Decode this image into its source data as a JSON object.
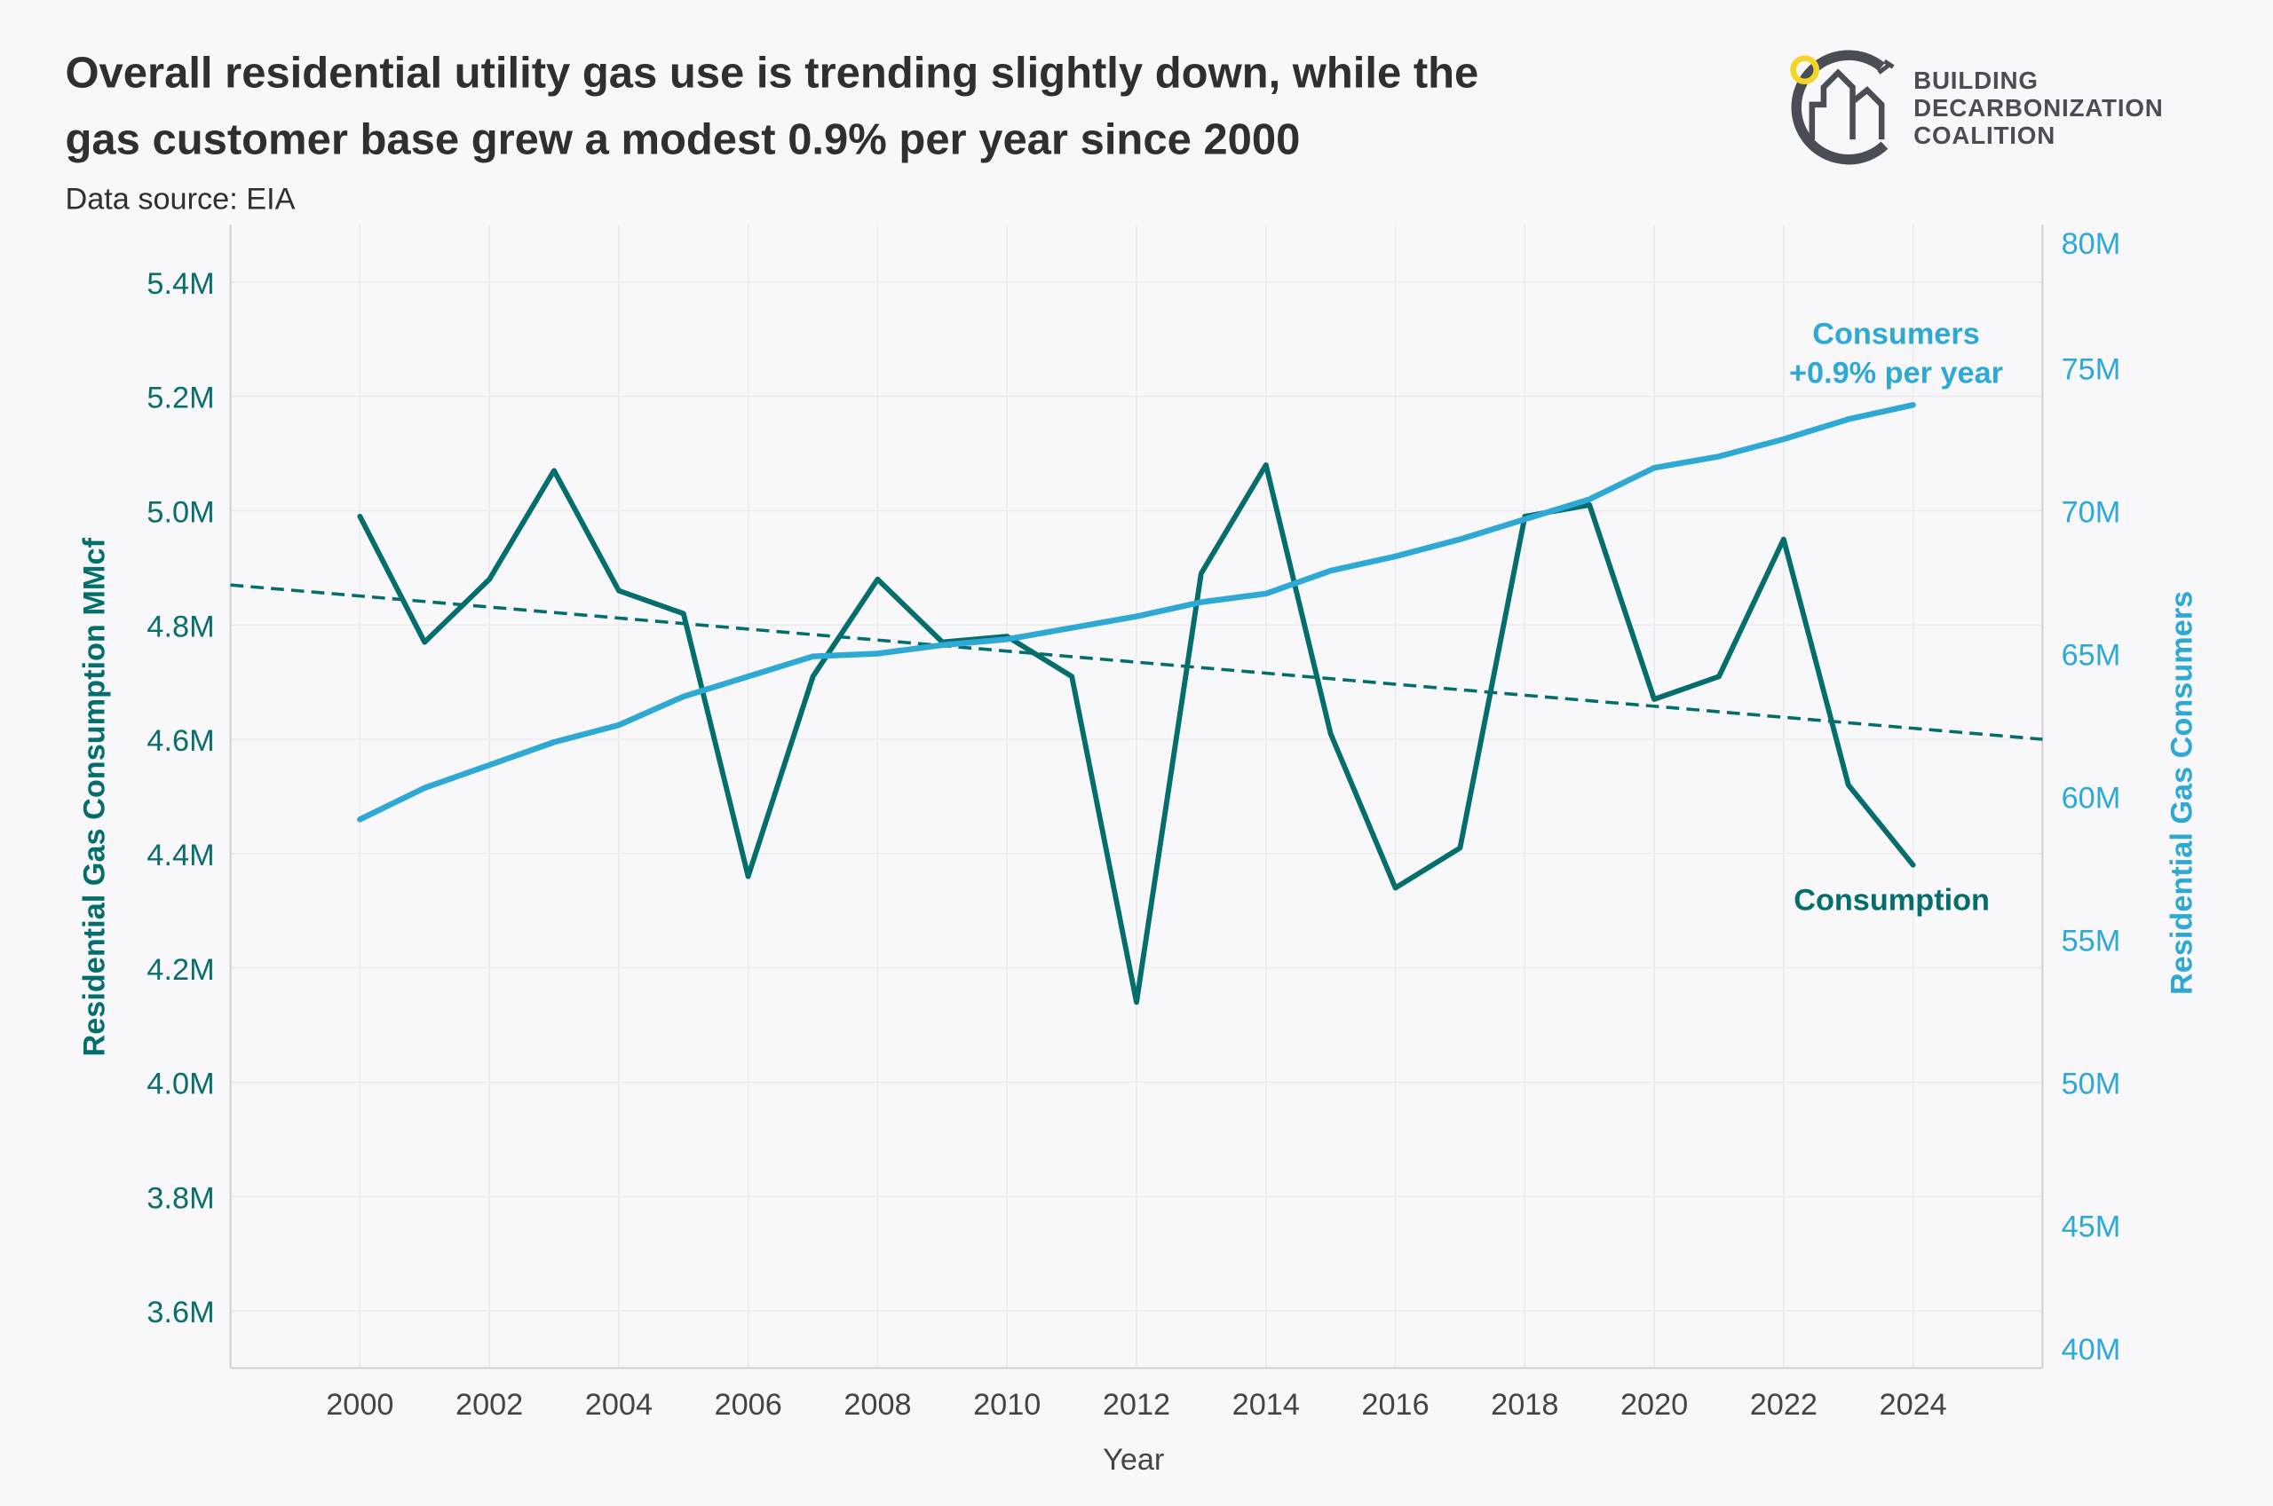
{
  "title_lines": [
    "Overall residential utility gas use is trending slightly down, while the",
    "gas customer base grew a modest 0.9% per year since 2000"
  ],
  "subtitle": "Data source: EIA",
  "logo": {
    "lines": [
      "BUILDING",
      "DECARBONIZATION",
      "COALITION"
    ]
  },
  "colors": {
    "consumption": "#036e6c",
    "consumers": "#2ea9d6",
    "background": "#f8f8fa",
    "logo_accent": "#f5d428"
  },
  "chart_data": {
    "type": "line",
    "title": "Overall residential utility gas use is trending slightly down, while the gas customer base grew a modest 0.9% per year since 2000",
    "xlabel": "Year",
    "ylabel": "Residential Gas Consumption MMcf",
    "y2label": "Residential Gas Consumers",
    "xlim": [
      1998,
      2026
    ],
    "ylim": [
      3.5,
      5.5
    ],
    "y2lim": [
      40,
      80
    ],
    "grid": true,
    "x_ticks": [
      "2000",
      "2002",
      "2004",
      "2006",
      "2008",
      "2010",
      "2012",
      "2014",
      "2016",
      "2018",
      "2020",
      "2022",
      "2024"
    ],
    "y_ticks": [
      "3.6M",
      "3.8M",
      "4.0M",
      "4.2M",
      "4.4M",
      "4.6M",
      "4.8M",
      "5.0M",
      "5.2M",
      "5.4M"
    ],
    "y2_ticks": [
      "40M",
      "45M",
      "50M",
      "55M",
      "60M",
      "65M",
      "70M",
      "75M",
      "80M"
    ],
    "x": [
      2000,
      2001,
      2002,
      2003,
      2004,
      2005,
      2006,
      2007,
      2008,
      2009,
      2010,
      2011,
      2012,
      2013,
      2014,
      2015,
      2016,
      2017,
      2018,
      2019,
      2020,
      2021,
      2022,
      2023,
      2024
    ],
    "series": [
      {
        "name": "Consumption",
        "axis": "left",
        "unit": "million MMcf",
        "values": [
          4.99,
          4.77,
          4.88,
          5.07,
          4.86,
          4.82,
          4.36,
          4.71,
          4.88,
          4.77,
          4.78,
          4.71,
          4.14,
          4.89,
          5.08,
          4.61,
          4.34,
          4.41,
          4.99,
          5.01,
          4.67,
          4.71,
          4.95,
          4.52,
          4.38
        ]
      },
      {
        "name": "Consumers",
        "axis": "right",
        "unit": "million",
        "values": [
          59.2,
          60.3,
          61.1,
          61.9,
          62.5,
          63.5,
          64.2,
          64.9,
          65.0,
          65.3,
          65.5,
          65.9,
          66.3,
          66.8,
          67.1,
          67.9,
          68.4,
          69.0,
          69.7,
          70.4,
          71.5,
          71.9,
          72.5,
          73.2,
          73.7
        ]
      }
    ],
    "trendline": {
      "series": "Consumption",
      "style": "dashed",
      "x": [
        1998,
        2026
      ],
      "values": [
        4.87,
        4.6
      ]
    },
    "annotations": {
      "consumers_line1": "Consumers",
      "consumers_line2": "+0.9% per year",
      "consumption": "Consumption"
    }
  }
}
